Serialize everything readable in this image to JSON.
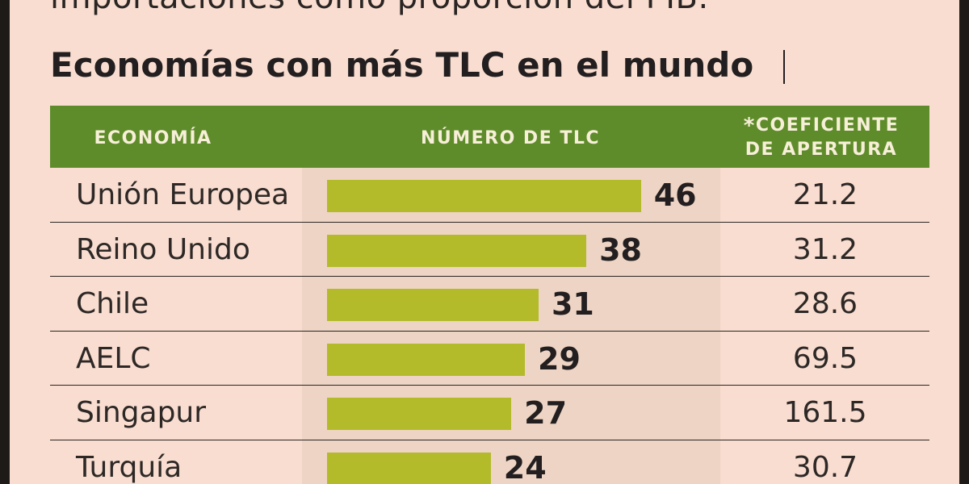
{
  "intro_text": "importaciones como proporción del PIB.",
  "title": "Economías con más TLC en el mundo",
  "headers": {
    "economia": "ECONOMÍA",
    "numero": "NÚMERO DE TLC",
    "coef_star": "*",
    "coef_line1": "COEFICIENTE",
    "coef_line2": "DE APERTURA"
  },
  "colors": {
    "background": "#f9ddd0",
    "header": "#5e8c2b",
    "bar": "#b3bb2b",
    "shade": "#eed4c4"
  },
  "chart_data": {
    "type": "bar",
    "orientation": "horizontal",
    "title": "Economías con más TLC en el mundo",
    "categories": [
      "Unión Europea",
      "Reino Unido",
      "Chile",
      "AELC",
      "Singapur",
      "Turquía"
    ],
    "values": [
      46,
      38,
      31,
      29,
      27,
      24
    ],
    "coeficiente_apertura": [
      "21.2",
      "31.2",
      "28.6",
      "69.5",
      "161.5",
      "30.7"
    ]
  }
}
